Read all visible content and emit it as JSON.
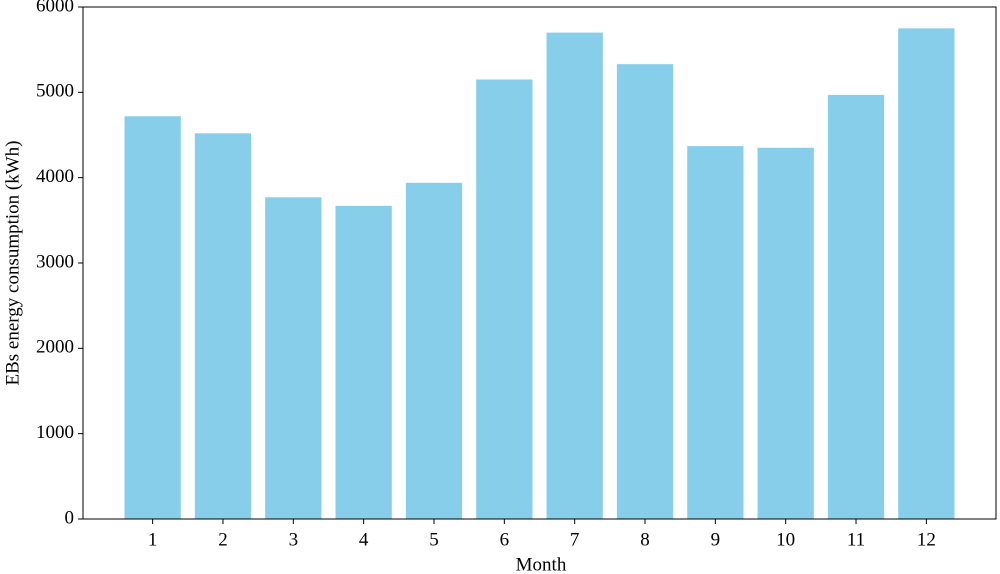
{
  "chart_data": {
    "type": "bar",
    "x_label": "Month",
    "y_label": "EBs energy consumption (kWh)",
    "categories": [
      "1",
      "2",
      "3",
      "4",
      "5",
      "6",
      "7",
      "8",
      "9",
      "10",
      "11",
      "12"
    ],
    "values": [
      4720,
      4520,
      3770,
      3670,
      3940,
      5150,
      5700,
      5330,
      4370,
      4350,
      4970,
      5750
    ],
    "color": "#87ceeb",
    "ylim": [
      0,
      6000
    ],
    "yticks": [
      0,
      1000,
      2000,
      3000,
      4000,
      5000,
      6000
    ],
    "grid": false
  }
}
